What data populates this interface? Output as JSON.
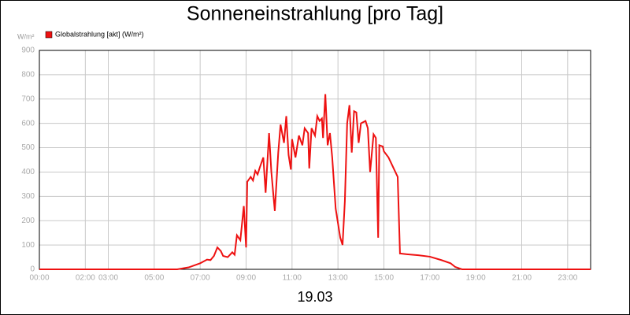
{
  "chart_data": {
    "type": "line",
    "title": "Sonneneinstrahlung [pro Tag]",
    "y_label": "W/m²",
    "x_label": "19.03",
    "xlim": [
      0,
      24
    ],
    "ylim": [
      0,
      900
    ],
    "yticks": [
      0,
      100,
      200,
      300,
      400,
      500,
      600,
      700,
      800,
      900
    ],
    "xticks": [
      {
        "value": 0,
        "label": "00:00"
      },
      {
        "value": 2,
        "label": "02:00"
      },
      {
        "value": 3,
        "label": "03:00"
      },
      {
        "value": 5,
        "label": "05:00"
      },
      {
        "value": 7,
        "label": "07:00"
      },
      {
        "value": 9,
        "label": "09:00"
      },
      {
        "value": 11,
        "label": "11:00"
      },
      {
        "value": 13,
        "label": "13:00"
      },
      {
        "value": 15,
        "label": "15:00"
      },
      {
        "value": 17,
        "label": "17:00"
      },
      {
        "value": 19,
        "label": "19:00"
      },
      {
        "value": 21,
        "label": "21:00"
      },
      {
        "value": 23,
        "label": "23:00"
      }
    ],
    "grid": true,
    "legend": "top-left",
    "x": [
      0,
      6.0,
      6.5,
      7.0,
      7.3,
      7.45,
      7.6,
      7.75,
      7.9,
      8.0,
      8.2,
      8.4,
      8.5,
      8.6,
      8.75,
      8.9,
      9.0,
      9.05,
      9.2,
      9.3,
      9.4,
      9.5,
      9.6,
      9.75,
      9.85,
      10.0,
      10.1,
      10.25,
      10.4,
      10.5,
      10.65,
      10.75,
      10.85,
      10.95,
      11.0,
      11.15,
      11.3,
      11.45,
      11.55,
      11.7,
      11.75,
      11.85,
      12.0,
      12.1,
      12.2,
      12.3,
      12.35,
      12.45,
      12.55,
      12.65,
      12.75,
      12.9,
      13.1,
      13.2,
      13.3,
      13.4,
      13.5,
      13.6,
      13.7,
      13.8,
      13.9,
      14.0,
      14.2,
      14.3,
      14.4,
      14.55,
      14.65,
      14.75,
      14.8,
      14.95,
      15.0,
      15.2,
      15.35,
      15.6,
      15.7,
      16.0,
      16.5,
      17.0,
      17.5,
      17.9,
      18.1,
      18.4,
      24.0
    ],
    "series": [
      {
        "name": "Globalstrahlung [akt] (W/m²)",
        "color": "#ee1111",
        "values": [
          0,
          0,
          8,
          25,
          40,
          38,
          55,
          90,
          75,
          55,
          50,
          70,
          60,
          140,
          120,
          260,
          90,
          360,
          380,
          365,
          405,
          390,
          420,
          460,
          315,
          560,
          400,
          240,
          480,
          595,
          520,
          630,
          470,
          410,
          535,
          460,
          550,
          510,
          580,
          560,
          415,
          580,
          550,
          630,
          610,
          620,
          540,
          720,
          510,
          560,
          460,
          250,
          130,
          100,
          280,
          600,
          675,
          480,
          650,
          645,
          520,
          600,
          610,
          580,
          400,
          555,
          540,
          130,
          510,
          505,
          485,
          460,
          430,
          380,
          65,
          62,
          58,
          52,
          38,
          25,
          10,
          0,
          0
        ]
      }
    ]
  }
}
